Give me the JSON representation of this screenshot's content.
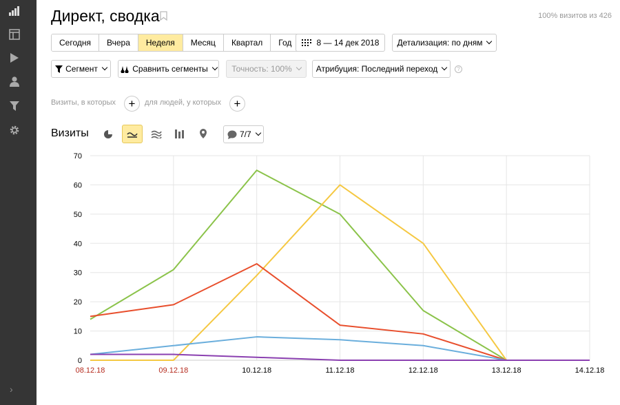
{
  "sidebar": {
    "items": [
      {
        "icon": "bar-chart-icon"
      },
      {
        "icon": "layout-icon"
      },
      {
        "icon": "play-icon"
      },
      {
        "icon": "user-icon"
      },
      {
        "icon": "funnel-icon"
      },
      {
        "icon": "gear-icon"
      }
    ],
    "expand_label": "›"
  },
  "header": {
    "title": "Директ, сводка",
    "visits_info": "100% визитов из 426"
  },
  "period": {
    "options": [
      "Сегодня",
      "Вчера",
      "Неделя",
      "Месяц",
      "Квартал",
      "Год"
    ],
    "active": "Неделя",
    "date_range": "8 — 14 дек 2018",
    "detail": "Детализация: по дням"
  },
  "toolbar": {
    "segment": "Сегмент",
    "compare": "Сравнить сегменты",
    "accuracy": "Точность: 100%",
    "attribution": "Атрибуция: Последний переход",
    "help": "?"
  },
  "filters": {
    "visits_where": "Визиты, в которых",
    "people_where": "для людей, у которых",
    "add": "+"
  },
  "chart_header": {
    "title": "Визиты",
    "series_count": "7/7"
  },
  "chart_data": {
    "type": "line",
    "categories": [
      "08.12.18",
      "09.12.18",
      "10.12.18",
      "11.12.18",
      "12.12.18",
      "13.12.18",
      "14.12.18"
    ],
    "weekend_color": "#b52b1e",
    "weekend_flags": [
      true,
      true,
      false,
      false,
      false,
      false,
      false
    ],
    "ylim": [
      0,
      70
    ],
    "yticks": [
      0,
      10,
      20,
      30,
      40,
      50,
      60,
      70
    ],
    "grid": true,
    "series": [
      {
        "color": "#8bc34a",
        "values": [
          14,
          31,
          65,
          50,
          17,
          0,
          0
        ]
      },
      {
        "color": "#f5c842",
        "values": [
          0,
          0,
          29,
          60,
          40,
          0,
          0
        ]
      },
      {
        "color": "#e84e2c",
        "values": [
          15,
          19,
          33,
          12,
          9,
          0,
          0
        ]
      },
      {
        "color": "#6aaedc",
        "values": [
          2,
          5,
          8,
          7,
          5,
          0,
          0
        ]
      },
      {
        "color": "#8a3fb0",
        "values": [
          2,
          2,
          1,
          0,
          0,
          0,
          0
        ]
      }
    ]
  }
}
